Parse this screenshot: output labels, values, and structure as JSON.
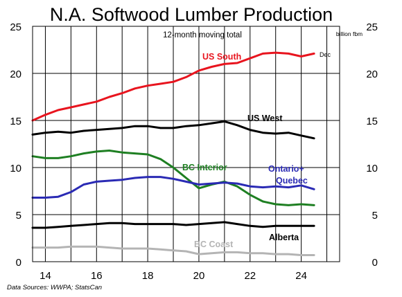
{
  "title": "N.A. Softwood Lumber Production",
  "chart_data": {
    "type": "line",
    "title": "N.A. Softwood Lumber Production",
    "subtitle": "12-month moving total",
    "unit": "billion fbm",
    "end_label": "Dec",
    "source": "Data Sources:  WWPA; StatsCan",
    "xlim": [
      2013.5,
      2025.5
    ],
    "ylim": [
      0,
      25
    ],
    "grid": true,
    "x_ticks": [
      {
        "value": 2014,
        "label": "14"
      },
      {
        "value": 2016,
        "label": "16"
      },
      {
        "value": 2018,
        "label": "18"
      },
      {
        "value": 2020,
        "label": "20"
      },
      {
        "value": 2022,
        "label": "22"
      },
      {
        "value": 2024,
        "label": "24"
      }
    ],
    "y_ticks": [
      {
        "value": 0,
        "label": "0"
      },
      {
        "value": 5,
        "label": "5"
      },
      {
        "value": 10,
        "label": "10"
      },
      {
        "value": 15,
        "label": "15"
      },
      {
        "value": 20,
        "label": "20"
      },
      {
        "value": 25,
        "label": "25"
      }
    ],
    "series": [
      {
        "name": "US South",
        "color": "#e8141e",
        "x": [
          2013.5,
          2014,
          2014.5,
          2015,
          2015.5,
          2016,
          2016.5,
          2017,
          2017.5,
          2018,
          2018.5,
          2019,
          2019.5,
          2020,
          2020.5,
          2021,
          2021.5,
          2022,
          2022.5,
          2023,
          2023.5,
          2024,
          2024.5
        ],
        "y": [
          15.0,
          15.6,
          16.1,
          16.4,
          16.7,
          17.0,
          17.5,
          17.9,
          18.4,
          18.7,
          18.9,
          19.1,
          19.6,
          20.3,
          20.7,
          21.0,
          21.1,
          21.6,
          22.1,
          22.2,
          22.1,
          21.8,
          22.1
        ]
      },
      {
        "name": "US West",
        "color": "#000000",
        "x": [
          2013.5,
          2014,
          2014.5,
          2015,
          2015.5,
          2016,
          2016.5,
          2017,
          2017.5,
          2018,
          2018.5,
          2019,
          2019.5,
          2020,
          2020.5,
          2021,
          2021.5,
          2022,
          2022.5,
          2023,
          2023.5,
          2024,
          2024.5
        ],
        "y": [
          13.5,
          13.7,
          13.8,
          13.7,
          13.9,
          14.0,
          14.1,
          14.2,
          14.4,
          14.4,
          14.2,
          14.2,
          14.4,
          14.5,
          14.7,
          14.9,
          14.5,
          14.0,
          13.7,
          13.6,
          13.7,
          13.4,
          13.1
        ]
      },
      {
        "name": "BC Interior",
        "color": "#1e7f22",
        "x": [
          2013.5,
          2014,
          2014.5,
          2015,
          2015.5,
          2016,
          2016.5,
          2017,
          2017.5,
          2018,
          2018.5,
          2019,
          2019.5,
          2020,
          2020.5,
          2021,
          2021.5,
          2022,
          2022.5,
          2023,
          2023.5,
          2024,
          2024.5
        ],
        "y": [
          11.2,
          11.0,
          11.0,
          11.2,
          11.5,
          11.7,
          11.8,
          11.6,
          11.5,
          11.4,
          10.9,
          10.0,
          8.9,
          7.8,
          8.2,
          8.5,
          8.0,
          7.1,
          6.4,
          6.1,
          6.0,
          6.1,
          6.0
        ]
      },
      {
        "name": "Ontario+ Quebec",
        "color": "#2a2ab4",
        "x": [
          2013.5,
          2014,
          2014.5,
          2015,
          2015.5,
          2016,
          2016.5,
          2017,
          2017.5,
          2018,
          2018.5,
          2019,
          2019.5,
          2020,
          2020.5,
          2021,
          2021.5,
          2022,
          2022.5,
          2023,
          2023.5,
          2024,
          2024.5
        ],
        "y": [
          6.8,
          6.8,
          6.9,
          7.4,
          8.2,
          8.5,
          8.6,
          8.7,
          8.9,
          9.0,
          9.0,
          8.8,
          8.5,
          8.2,
          8.3,
          8.4,
          8.3,
          8.0,
          7.9,
          8.0,
          7.9,
          8.1,
          7.7
        ]
      },
      {
        "name": "Alberta",
        "color": "#000000",
        "x": [
          2013.5,
          2014,
          2014.5,
          2015,
          2015.5,
          2016,
          2016.5,
          2017,
          2017.5,
          2018,
          2018.5,
          2019,
          2019.5,
          2020,
          2020.5,
          2021,
          2021.5,
          2022,
          2022.5,
          2023,
          2023.5,
          2024,
          2024.5
        ],
        "y": [
          3.6,
          3.6,
          3.7,
          3.8,
          3.9,
          4.0,
          4.1,
          4.1,
          4.0,
          4.0,
          4.0,
          4.0,
          3.9,
          4.0,
          4.1,
          4.2,
          4.0,
          3.8,
          3.7,
          3.8,
          3.8,
          3.8,
          3.8
        ]
      },
      {
        "name": "BC Coast",
        "color": "#b4b4b4",
        "x": [
          2013.5,
          2014,
          2014.5,
          2015,
          2015.5,
          2016,
          2016.5,
          2017,
          2017.5,
          2018,
          2018.5,
          2019,
          2019.5,
          2020,
          2020.5,
          2021,
          2021.5,
          2022,
          2022.5,
          2023,
          2023.5,
          2024,
          2024.5
        ],
        "y": [
          1.5,
          1.5,
          1.5,
          1.6,
          1.6,
          1.6,
          1.5,
          1.4,
          1.4,
          1.4,
          1.3,
          1.2,
          1.1,
          0.8,
          0.9,
          1.0,
          1.0,
          0.9,
          0.9,
          0.8,
          0.8,
          0.7,
          0.7
        ]
      }
    ]
  }
}
